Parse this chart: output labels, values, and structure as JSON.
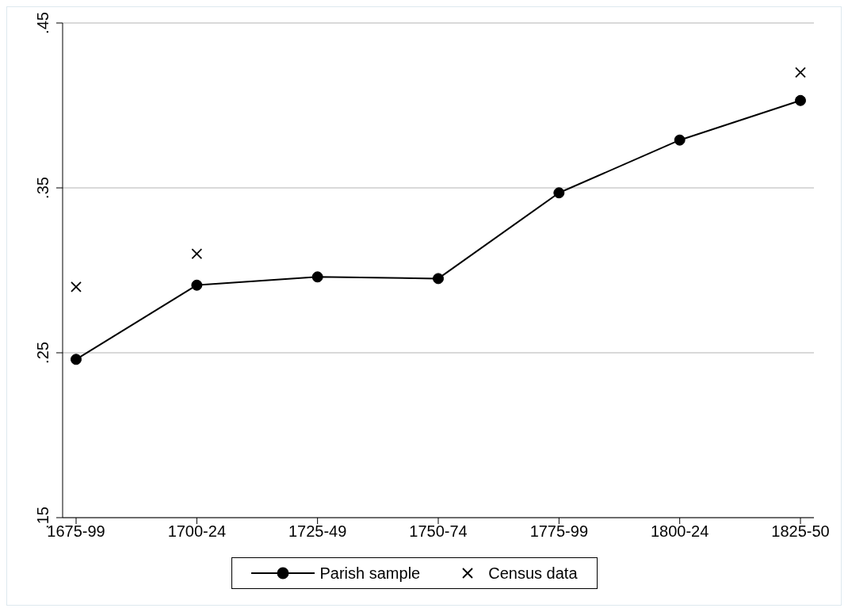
{
  "chart_data": {
    "type": "line",
    "categories": [
      "1675-99",
      "1700-24",
      "1725-49",
      "1750-74",
      "1775-99",
      "1800-24",
      "1825-50"
    ],
    "series": [
      {
        "name": "Parish sample",
        "type": "line",
        "color": "#000000",
        "marker": "circle",
        "values": [
          0.246,
          0.291,
          0.296,
          0.295,
          0.347,
          0.379,
          0.403
        ]
      },
      {
        "name": "Census data",
        "type": "scatter",
        "color": "#000000",
        "marker": "cross",
        "values": [
          0.29,
          0.31,
          null,
          null,
          null,
          null,
          0.42
        ]
      }
    ],
    "ylim": [
      0.15,
      0.45
    ],
    "yticks": [
      {
        "value": 0.15,
        "label": ".15"
      },
      {
        "value": 0.25,
        "label": ".25"
      },
      {
        "value": 0.35,
        "label": ".35"
      },
      {
        "value": 0.45,
        "label": ".45"
      }
    ],
    "grid": "y",
    "legend": "bottom"
  }
}
